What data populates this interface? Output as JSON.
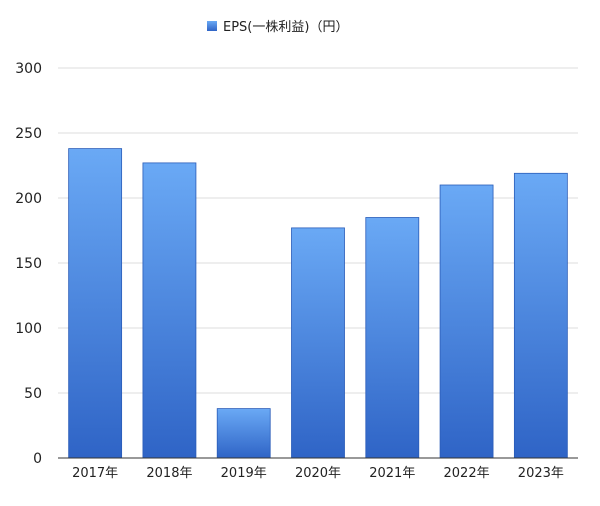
{
  "chart_data": {
    "type": "bar",
    "legend": {
      "position": "top-center",
      "entries": [
        "EPS(一株利益)（円）"
      ]
    },
    "categories": [
      "2017年",
      "2018年",
      "2019年",
      "2020年",
      "2021年",
      "2022年",
      "2023年"
    ],
    "series": [
      {
        "name": "EPS(一株利益)（円）",
        "values": [
          238,
          227,
          38,
          177,
          185,
          210,
          219
        ],
        "color_top": "#6aa9f5",
        "color_bottom": "#2f64c6",
        "border_color": "#2a5cb8"
      }
    ],
    "title": "",
    "xlabel": "",
    "ylabel": "",
    "ylim": [
      0,
      300
    ],
    "yticks": [
      "0",
      "50",
      "100",
      "150",
      "200",
      "250",
      "300"
    ],
    "grid": true
  }
}
